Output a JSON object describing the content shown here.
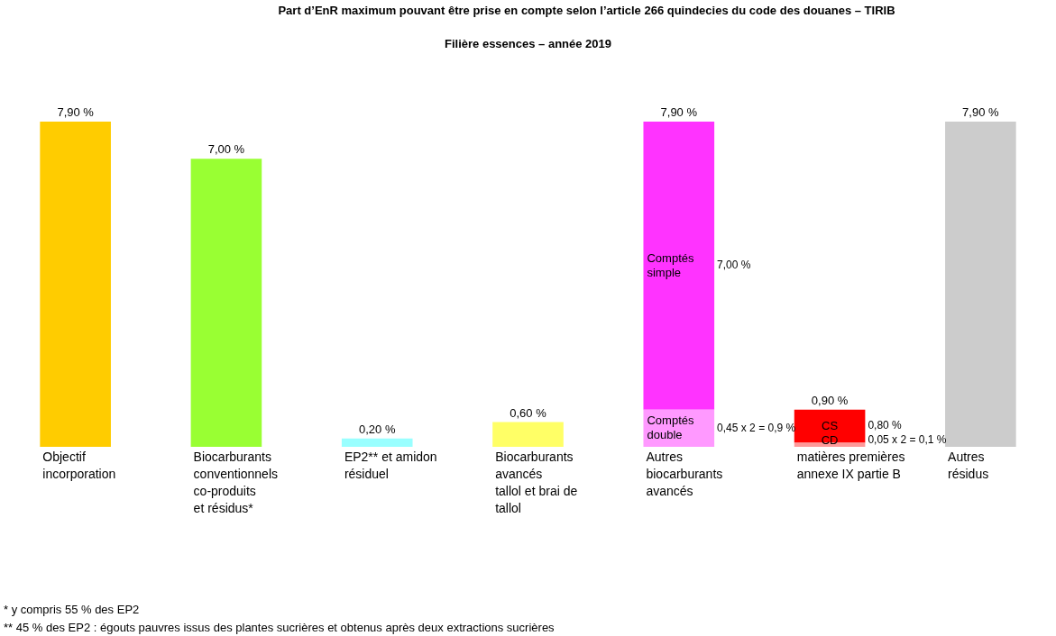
{
  "chart_data": {
    "type": "bar",
    "title": "Part d’EnR maximum pouvant être prise en compte selon l’article 266 quindecies du code des douanes – TIRIB",
    "subtitle": "Filière essences – année 2019",
    "categories": [
      [
        "Objectif",
        "incorporation"
      ],
      [
        "Biocarburants",
        "conventionnels",
        "co-produits",
        "et résidus*"
      ],
      [
        "EP2** et amidon",
        "résiduel"
      ],
      [
        "Biocarburants",
        "avancés",
        "tallol et brai de",
        "tallol"
      ],
      [
        "Autres",
        "biocarburants",
        "avancés"
      ],
      [
        "matières premières",
        "annexe IX partie B"
      ],
      [
        "Autres",
        "résidus"
      ]
    ],
    "stacked": true,
    "data_labels": true,
    "tick_labels": "x",
    "grid": false,
    "ylim": [
      0,
      7.9
    ],
    "series": [
      {
        "values": [
          7.9,
          7.0,
          0.2,
          0.6,
          null,
          null,
          7.9
        ],
        "colors": [
          "#FFCC00",
          "#99FF33",
          "#99FFFF",
          "#FFFF66",
          null,
          null,
          "#CCCCCC"
        ],
        "value_labels": [
          "7,90 %",
          "7,00 %",
          "0,20 %",
          "0,60 %",
          null,
          null,
          "7,90 %"
        ]
      },
      {
        "values": [
          null,
          null,
          null,
          null,
          0.9,
          0.1,
          null
        ],
        "colors": [
          null,
          null,
          null,
          null,
          "#FF99FF",
          "#FF9999",
          null
        ],
        "segment_labels": [
          null,
          null,
          null,
          null,
          [
            "Comptés",
            "double"
          ],
          "CD",
          null
        ],
        "value_labels": [
          null,
          null,
          null,
          null,
          "0,45 x 2 = 0,9 %",
          "0,05 x 2 = 0,1 %",
          null
        ]
      },
      {
        "values": [
          null,
          null,
          null,
          null,
          7.0,
          0.8,
          null
        ],
        "colors": [
          null,
          null,
          null,
          null,
          "#FF33FF",
          "#FF0000",
          null
        ],
        "segment_labels": [
          null,
          null,
          null,
          null,
          [
            "Comptés",
            "simple"
          ],
          "CS",
          null
        ],
        "value_labels": [
          null,
          null,
          null,
          null,
          "7,00 %",
          "0,80 %",
          null
        ]
      }
    ],
    "totals": [
      null,
      null,
      null,
      null,
      7.9,
      0.9,
      null
    ],
    "total_labels": [
      null,
      null,
      null,
      null,
      "7,90 %",
      "0,90 %",
      null
    ],
    "footnotes": [
      "* y compris 55 % des EP2",
      "** 45 % des EP2 : égouts pauvres issus des plantes sucrières et obtenus après deux extractions sucrières"
    ]
  }
}
